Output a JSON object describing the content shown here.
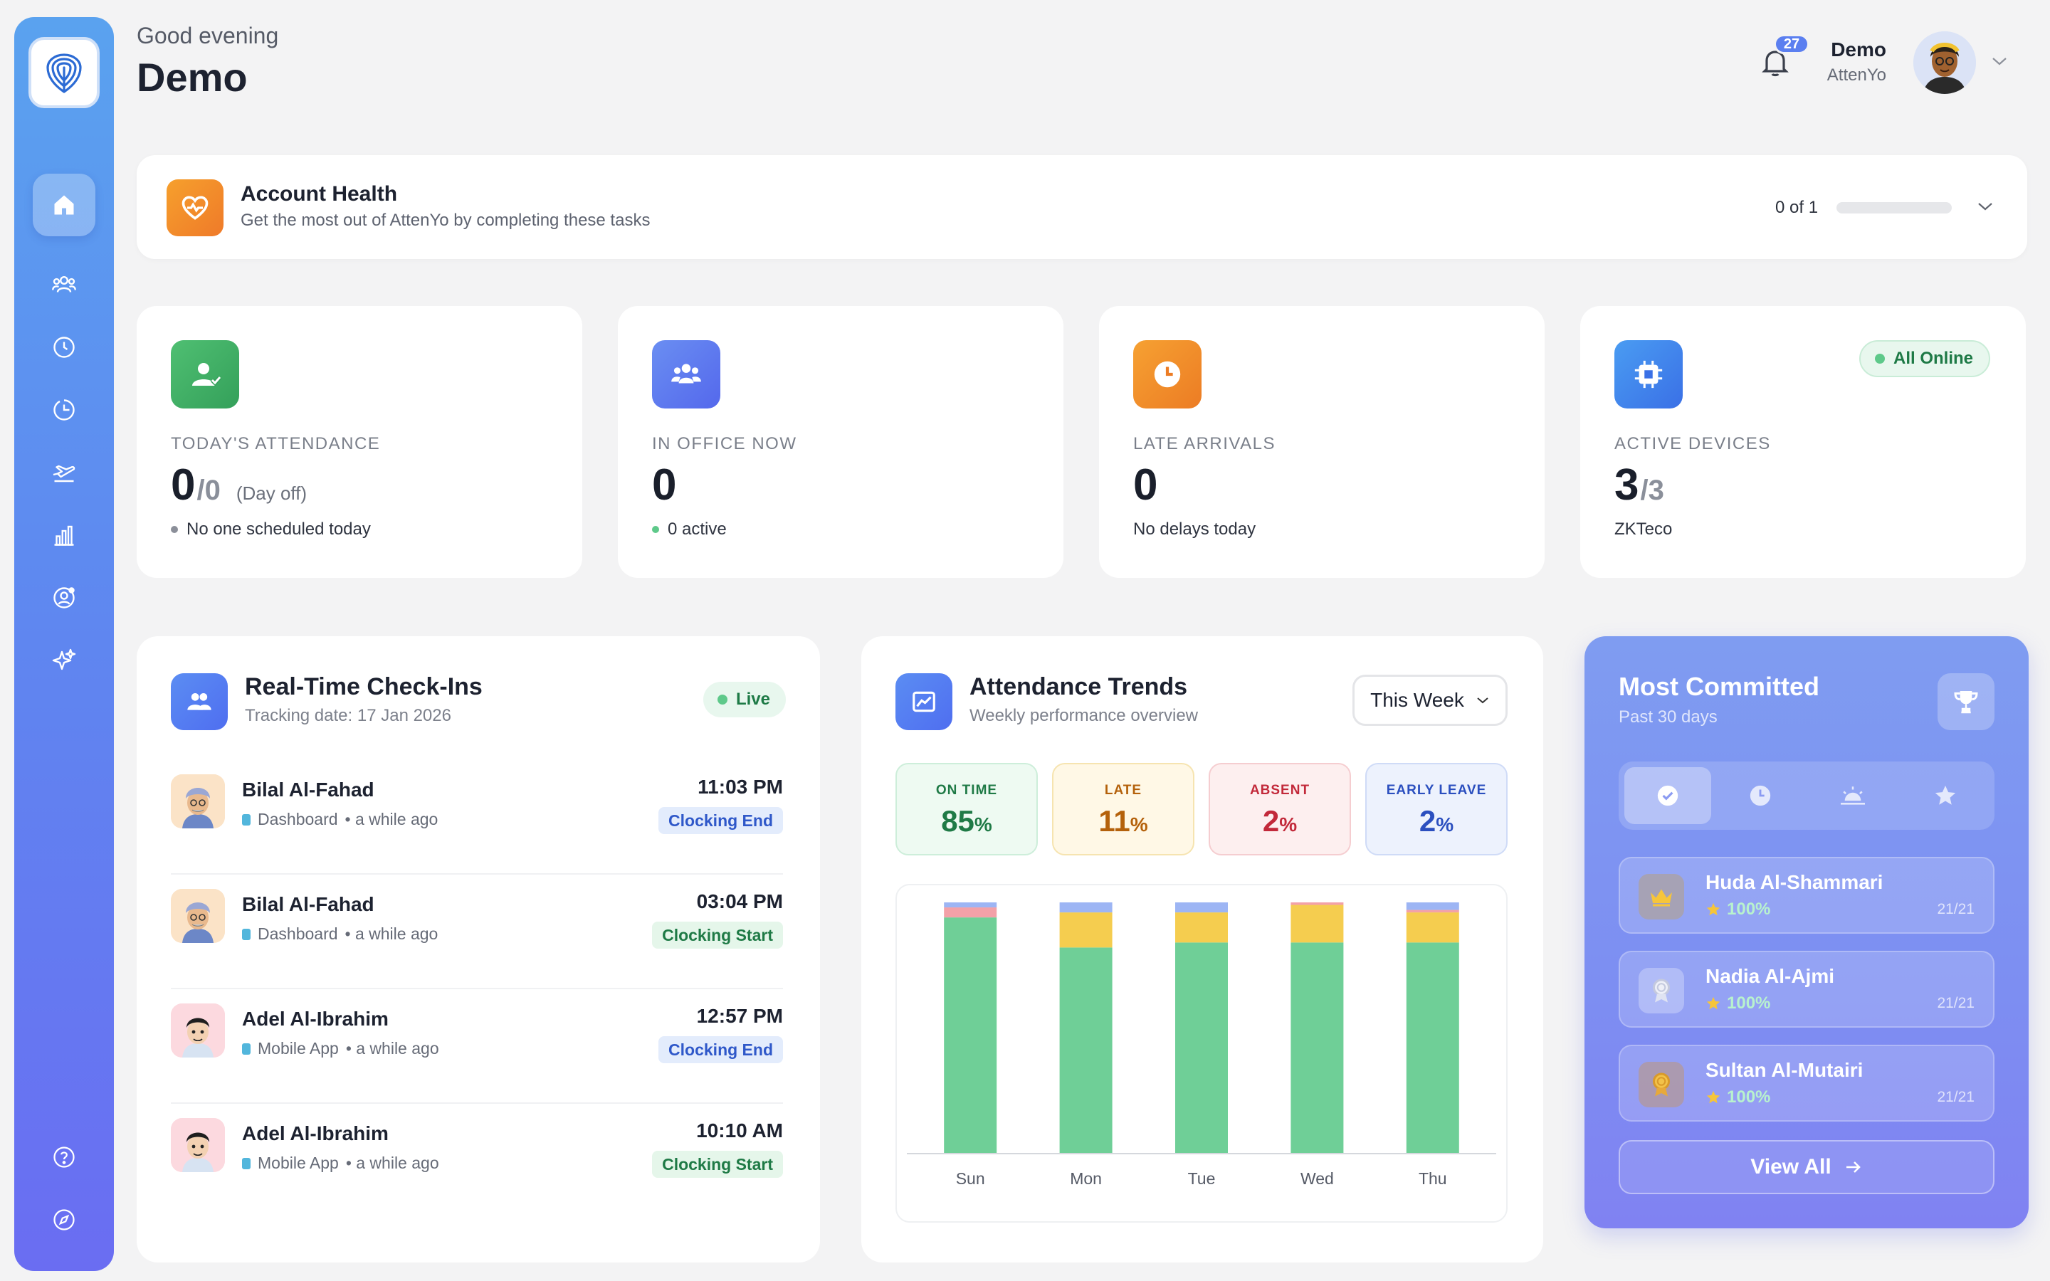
{
  "header": {
    "greeting": "Good evening",
    "username": "Demo",
    "notifications_count": "27",
    "user": {
      "name": "Demo",
      "org": "AttenYo"
    }
  },
  "sidebar": {
    "items": [
      {
        "name": "home",
        "icon": "home-icon",
        "active": true
      },
      {
        "name": "employees",
        "icon": "users-icon"
      },
      {
        "name": "attendance",
        "icon": "clock-icon"
      },
      {
        "name": "shifts",
        "icon": "clock-pie-icon"
      },
      {
        "name": "leaves",
        "icon": "plane-icon"
      },
      {
        "name": "reports",
        "icon": "bar-chart-icon"
      },
      {
        "name": "profile",
        "icon": "user-settings-icon"
      },
      {
        "name": "ai",
        "icon": "sparkles-icon"
      }
    ],
    "bottom": [
      {
        "name": "help",
        "icon": "help-icon"
      },
      {
        "name": "explore",
        "icon": "compass-icon"
      }
    ]
  },
  "health": {
    "title": "Account Health",
    "subtitle": "Get the most out of AttenYo by completing these tasks",
    "progress_text": "0 of 1",
    "progress": 0
  },
  "stats": {
    "attendance": {
      "label": "TODAY'S ATTENDANCE",
      "value": "0",
      "sub": "/0",
      "note": "(Day off)",
      "foot": "No one scheduled today",
      "color": "#3faa62"
    },
    "in_office": {
      "label": "IN OFFICE NOW",
      "value": "0",
      "foot": "0 active",
      "color": "#5b77ee"
    },
    "late": {
      "label": "LATE ARRIVALS",
      "value": "0",
      "foot": "No delays today",
      "color": "#f08a2a"
    },
    "devices": {
      "label": "ACTIVE DEVICES",
      "value": "3",
      "sub": "/3",
      "foot": "ZKTeco",
      "status": "All Online",
      "color": "#3f80ec"
    }
  },
  "checkins": {
    "title": "Real-Time Check-Ins",
    "subtitle": "Tracking date: 17 Jan 2026",
    "live_label": "Live",
    "items": [
      {
        "name": "Bilal Al-Fahad",
        "source": "Dashboard",
        "when": "• a while ago",
        "time": "11:03 PM",
        "tag": "Clocking End"
      },
      {
        "name": "Bilal Al-Fahad",
        "source": "Dashboard",
        "when": "• a while ago",
        "time": "03:04 PM",
        "tag": "Clocking Start"
      },
      {
        "name": "Adel Al-Ibrahim",
        "source": "Mobile App",
        "when": "• a while ago",
        "time": "12:57 PM",
        "tag": "Clocking End"
      },
      {
        "name": "Adel Al-Ibrahim",
        "source": "Mobile App",
        "when": "• a while ago",
        "time": "10:10 AM",
        "tag": "Clocking Start"
      }
    ]
  },
  "trends": {
    "title": "Attendance Trends",
    "subtitle": "Weekly performance overview",
    "period": "This Week",
    "metrics": [
      {
        "label": "ON TIME",
        "value": "85",
        "unit": "%",
        "color": "#1f7a46",
        "bg": "#eefaf2",
        "border": "#cdeeda"
      },
      {
        "label": "LATE",
        "value": "11",
        "unit": "%",
        "color": "#b4610b",
        "bg": "#fff8e6",
        "border": "#f6e4b0"
      },
      {
        "label": "ABSENT",
        "value": "2",
        "unit": "%",
        "color": "#c2293a",
        "bg": "#fdefef",
        "border": "#f5cdd0"
      },
      {
        "label": "EARLY LEAVE",
        "value": "2",
        "unit": "%",
        "color": "#2b4fbf",
        "bg": "#edf2fd",
        "border": "#cfdbf7"
      }
    ]
  },
  "chart_data": {
    "type": "bar",
    "stacked": true,
    "categories": [
      "Sun",
      "Mon",
      "Tue",
      "Wed",
      "Thu"
    ],
    "ylim": [
      0,
      100
    ],
    "series": [
      {
        "key": "on_time",
        "values": [
          94,
          82,
          84,
          84,
          84
        ],
        "color": "#6fcf97"
      },
      {
        "key": "late",
        "values": [
          0,
          14,
          12,
          15,
          12
        ],
        "color": "#f5cd4f"
      },
      {
        "key": "absent",
        "values": [
          4,
          0,
          0,
          1,
          1
        ],
        "color": "#f3a1a8"
      },
      {
        "key": "early_leave",
        "values": [
          2,
          4,
          4,
          0,
          3
        ],
        "color": "#9db5f4"
      }
    ]
  },
  "committed": {
    "title": "Most Committed",
    "subtitle": "Past 30 days",
    "tabs": [
      "check-icon",
      "clock-icon",
      "sunrise-icon",
      "star-icon"
    ],
    "people": [
      {
        "name": "Huda Al-Shammari",
        "pct": "100%",
        "count": "21/21",
        "medal": "crown-icon"
      },
      {
        "name": "Nadia Al-Ajmi",
        "pct": "100%",
        "count": "21/21",
        "medal": "silver-medal-icon"
      },
      {
        "name": "Sultan Al-Mutairi",
        "pct": "100%",
        "count": "21/21",
        "medal": "bronze-medal-icon"
      }
    ],
    "view_all": "View All"
  }
}
